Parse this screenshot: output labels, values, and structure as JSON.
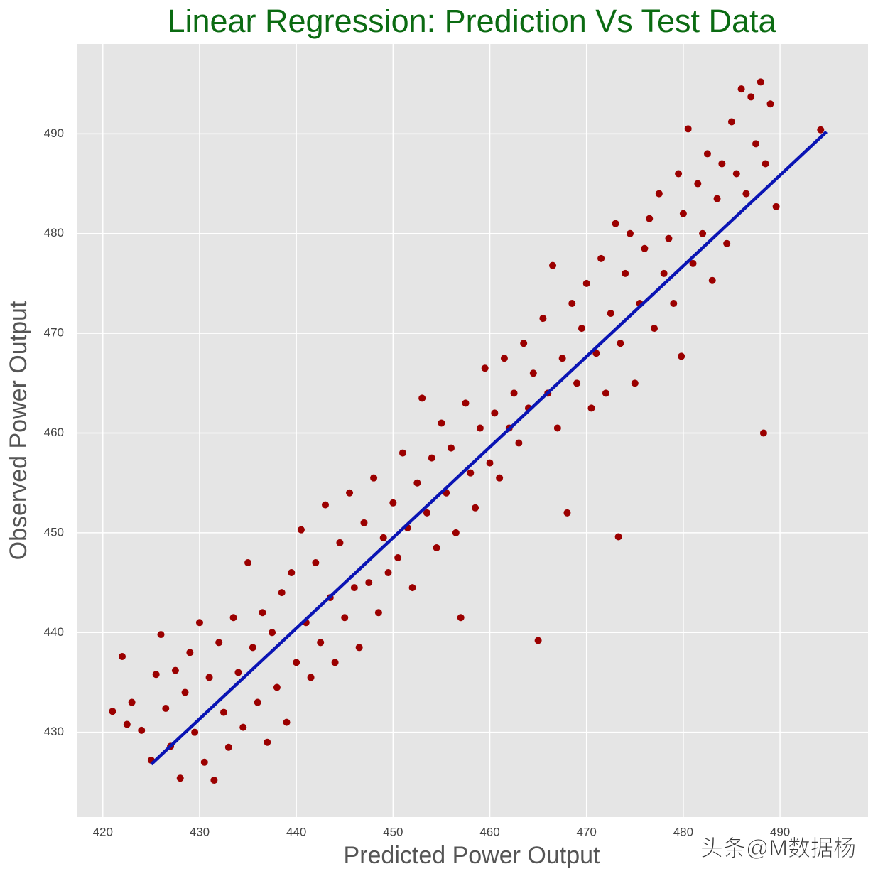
{
  "chart_data": {
    "type": "scatter",
    "title": "Linear Regression: Prediction Vs Test Data",
    "xlabel": "Predicted Power Output",
    "ylabel": "Observed Power Output",
    "watermark": "头条@M数据杨",
    "xlim": [
      417.3,
      499.1
    ],
    "ylim": [
      421.5,
      499.0
    ],
    "xticks": [
      420,
      430,
      440,
      450,
      460,
      470,
      480,
      490
    ],
    "yticks": [
      430,
      440,
      450,
      460,
      470,
      480,
      490
    ],
    "grid": true,
    "series": [
      {
        "type": "scatter",
        "color": "#9b0000",
        "x": [
          421,
          422,
          422.5,
          423,
          424,
          425,
          425.5,
          426,
          426.5,
          427,
          427.5,
          428,
          428.5,
          429,
          429.5,
          430,
          430.5,
          431,
          431.5,
          432,
          432.5,
          433,
          433.5,
          434,
          434.5,
          435,
          435.5,
          436,
          436.5,
          437,
          437.5,
          438,
          438.5,
          439,
          439.5,
          440,
          440.5,
          441,
          441.5,
          442,
          442.5,
          443,
          443.5,
          444,
          444.5,
          445,
          445.5,
          446,
          446.5,
          447,
          447.5,
          448,
          448.5,
          449,
          449.5,
          450,
          450.5,
          451,
          451.5,
          452,
          452.5,
          453,
          453.5,
          454,
          454.5,
          455,
          455.5,
          456,
          456.5,
          457,
          457.5,
          458,
          458.5,
          459,
          459.5,
          460,
          460.5,
          461,
          461.5,
          462,
          462.5,
          463,
          463.5,
          464,
          464.5,
          465,
          465.5,
          466,
          466.5,
          467,
          467.5,
          468,
          468.5,
          469,
          469.5,
          470,
          470.5,
          471,
          471.5,
          472,
          472.5,
          473,
          473.3,
          473.5,
          474,
          474.5,
          475,
          475.5,
          476,
          476.5,
          477,
          477.5,
          478,
          478.5,
          479,
          479.5,
          479.8,
          480,
          480.5,
          481,
          481.5,
          482,
          482.5,
          483,
          483.5,
          484,
          484.5,
          485,
          485.5,
          486,
          486.5,
          487,
          487.5,
          488,
          488.3,
          488.5,
          489,
          489.6,
          494.2
        ],
        "y": [
          432.1,
          437.6,
          430.8,
          433,
          430.2,
          427.2,
          435.8,
          439.8,
          432.4,
          428.6,
          436.2,
          425.4,
          434,
          438,
          430,
          441,
          427,
          435.5,
          425.2,
          439,
          432,
          428.5,
          441.5,
          436,
          430.5,
          447,
          438.5,
          433,
          442,
          429,
          440,
          434.5,
          444,
          431,
          446,
          437,
          450.3,
          441,
          435.5,
          447,
          439,
          452.8,
          443.5,
          437,
          449,
          441.5,
          454,
          444.5,
          438.5,
          451,
          445,
          455.5,
          442,
          449.5,
          446,
          453,
          447.5,
          458,
          450.5,
          444.5,
          455,
          463.5,
          452,
          457.5,
          448.5,
          461,
          454,
          458.5,
          450,
          441.5,
          463,
          456,
          452.5,
          460.5,
          466.5,
          457,
          462,
          455.5,
          467.5,
          460.5,
          464,
          459,
          469,
          462.5,
          466,
          439.2,
          471.5,
          464,
          476.8,
          460.5,
          467.5,
          452,
          473,
          465,
          470.5,
          475,
          462.5,
          468,
          477.5,
          464,
          472,
          481,
          449.6,
          469,
          476,
          480,
          465,
          473,
          478.5,
          481.5,
          470.5,
          484,
          476,
          479.5,
          473,
          486,
          467.7,
          482,
          490.5,
          477,
          485,
          480,
          488,
          475.3,
          483.5,
          487,
          479,
          491.2,
          486,
          494.5,
          484,
          493.7,
          489,
          495.2,
          460,
          487,
          493,
          482.7,
          490.4
        ]
      },
      {
        "type": "line",
        "color": "#0a14b4",
        "x": [
          425,
          494.8
        ],
        "y": [
          426.8,
          490.2
        ]
      }
    ]
  }
}
